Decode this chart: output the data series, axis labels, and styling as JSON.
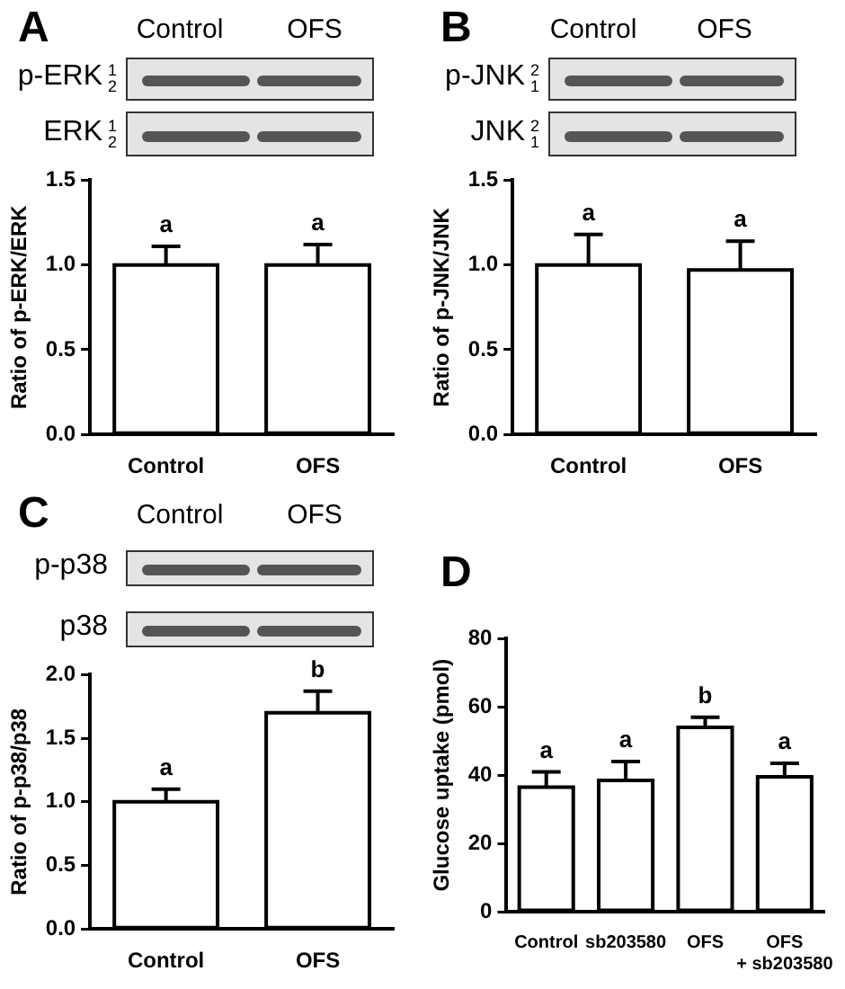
{
  "chart_data": [
    {
      "type": "bar",
      "title": "A",
      "ylabel": "Ratio of p-ERK/ERK",
      "categories": [
        "Control",
        "OFS"
      ],
      "values": [
        1.0,
        1.0
      ],
      "errors": [
        0.11,
        0.12
      ],
      "color": "#ffffff",
      "ylim": [
        0,
        1.5
      ],
      "yticks": [
        {
          "value": 0,
          "label": "0.0"
        },
        {
          "value": 0.5,
          "label": "0.5"
        },
        {
          "value": 1,
          "label": "1.0"
        },
        {
          "value": 1.5,
          "label": "1.5"
        }
      ],
      "grid": false,
      "legend": false,
      "annotations": [
        "p-ERK",
        "1",
        "2",
        "ERK",
        "1",
        "2",
        {
          "text": "a",
          "x": "Control",
          "y": 1.11
        },
        {
          "text": "a",
          "x": "OFS",
          "y": 1.12
        }
      ]
    },
    {
      "type": "bar",
      "title": "B",
      "ylabel": "Ratio of p-JNK/JNK",
      "categories": [
        "Control",
        "OFS"
      ],
      "values": [
        1.0,
        0.97
      ],
      "errors": [
        0.18,
        0.17
      ],
      "color": "#ffffff",
      "ylim": [
        0,
        1.5
      ],
      "yticks": [
        {
          "value": 0,
          "label": "0.0"
        },
        {
          "value": 0.5,
          "label": "0.5"
        },
        {
          "value": 1,
          "label": "1.0"
        },
        {
          "value": 1.5,
          "label": "1.5"
        }
      ],
      "grid": false,
      "legend": false,
      "annotations": [
        "p-JNK",
        "2",
        "1",
        "JNK",
        "2",
        "1",
        {
          "text": "a",
          "x": "Control",
          "y": 1.18
        },
        {
          "text": "a",
          "x": "OFS",
          "y": 1.14
        }
      ]
    },
    {
      "type": "bar",
      "title": "C",
      "ylabel": "Ratio of p-p38/p38",
      "categories": [
        "Control",
        "OFS"
      ],
      "values": [
        1.0,
        1.7
      ],
      "errors": [
        0.1,
        0.17
      ],
      "color": "#ffffff",
      "ylim": [
        0,
        2
      ],
      "yticks": [
        {
          "value": 0,
          "label": "0.0"
        },
        {
          "value": 0.5,
          "label": "0.5"
        },
        {
          "value": 1,
          "label": "1.0"
        },
        {
          "value": 1.5,
          "label": "1.5"
        },
        {
          "value": 2,
          "label": "2.0"
        }
      ],
      "grid": false,
      "legend": false,
      "annotations": [
        "p-p38",
        "p38",
        {
          "text": "a",
          "x": "Control",
          "y": 1.1
        },
        {
          "text": "b",
          "x": "OFS",
          "y": 1.87
        }
      ]
    },
    {
      "type": "bar",
      "title": "D",
      "ylabel": "Glucose uptake (pmol)",
      "categories": [
        "Control",
        "sb203580",
        "OFS",
        "OFS + sb203580"
      ],
      "values": [
        36.5,
        38.5,
        54,
        39.5
      ],
      "errors": [
        4.5,
        5.5,
        3,
        4
      ],
      "color": "#ffffff",
      "ylim": [
        0,
        80
      ],
      "yticks": [
        0,
        20,
        40,
        60,
        80
      ],
      "grid": false,
      "legend": false,
      "annotations": [
        {
          "text": "a",
          "x": "Control",
          "y": 41
        },
        {
          "text": "a",
          "x": "sb203580",
          "y": 44
        },
        {
          "text": "b",
          "x": "OFS",
          "y": 57
        },
        {
          "text": "a",
          "x": "OFS + sb203580",
          "y": 43.5
        }
      ]
    }
  ]
}
